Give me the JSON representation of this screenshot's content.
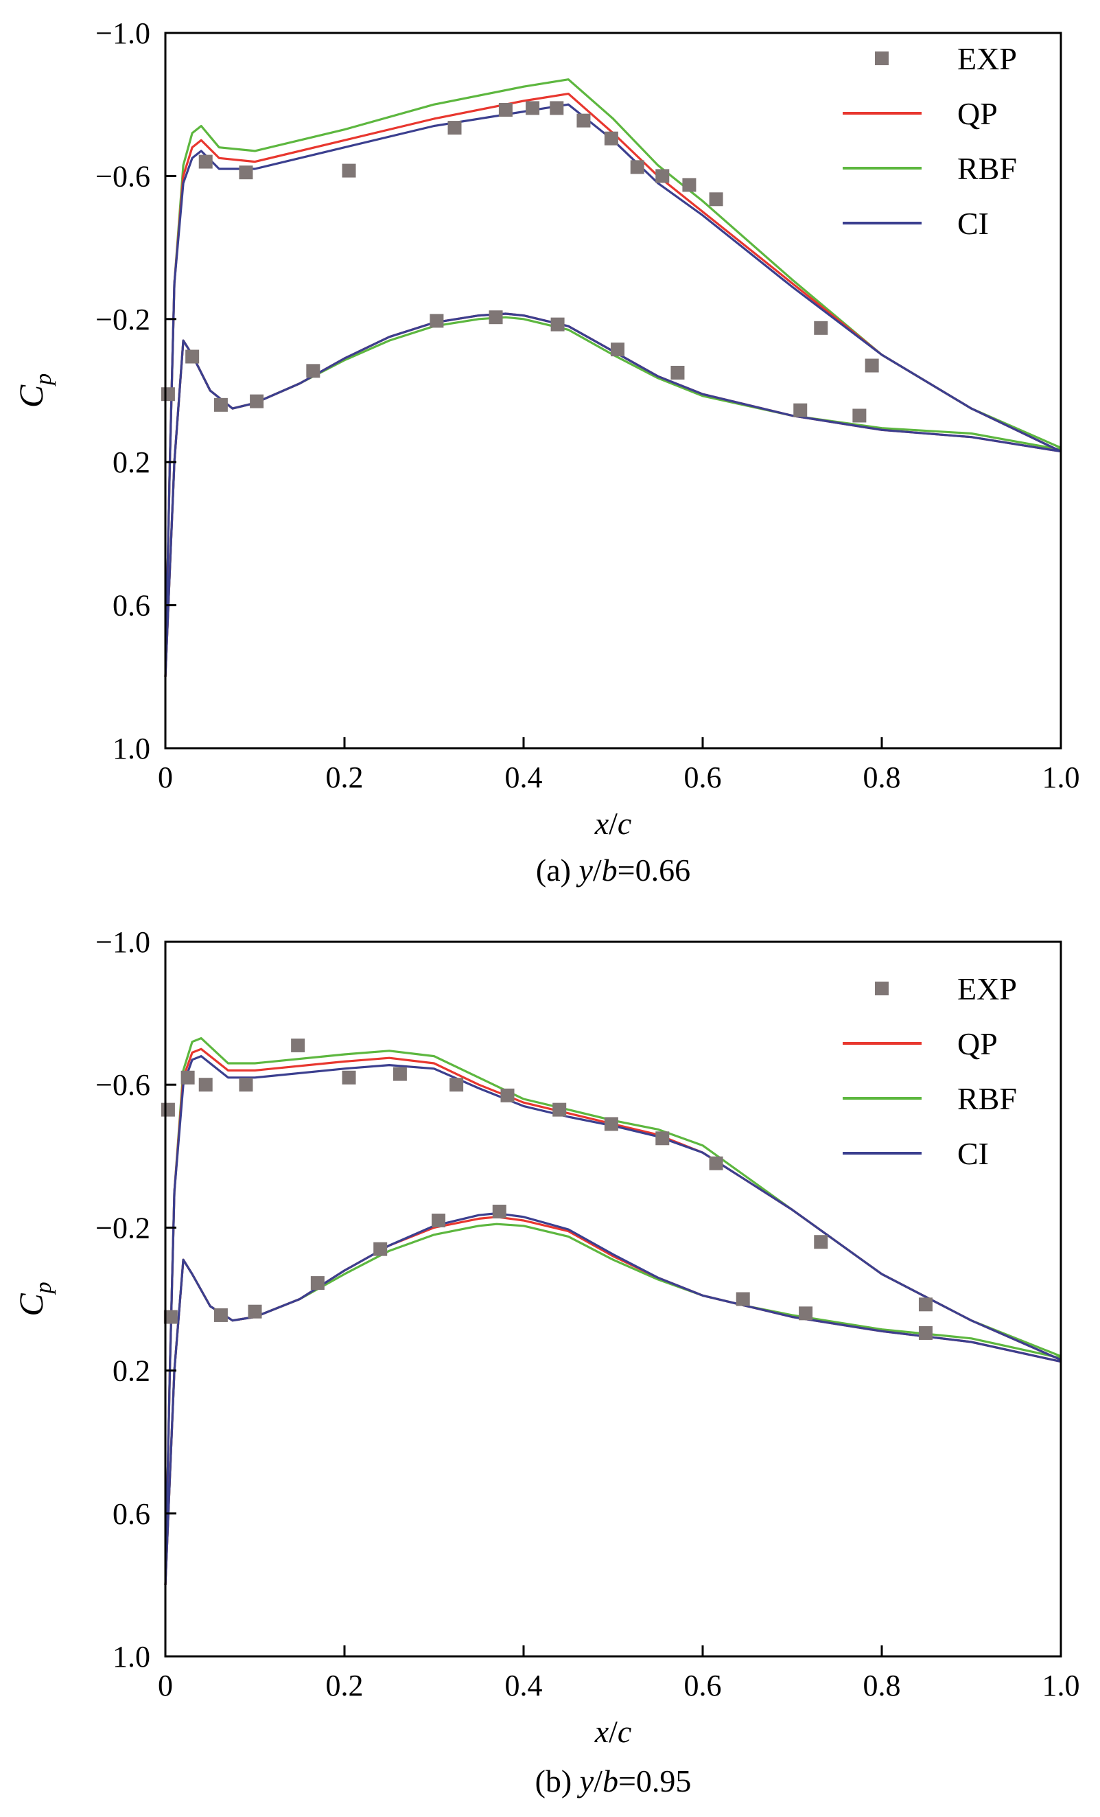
{
  "figure": {
    "colors": {
      "EXP": "#7f7675",
      "QP": "#e8372f",
      "RBF": "#5db73f",
      "CI": "#3b3f8f",
      "axis": "#000000"
    }
  },
  "chart_data": [
    {
      "type": "line",
      "caption": {
        "prefix": "(a) ",
        "var_y": "y",
        "slash": "/",
        "var_b": "b",
        "value": "=0.66"
      },
      "xlabel": {
        "x": "x",
        "slash": "/",
        "c": "c"
      },
      "ylabel": {
        "main": "C",
        "sub": "p"
      },
      "xlim": [
        0,
        1.0
      ],
      "ylim": [
        1.0,
        -1.0
      ],
      "y_inverted": true,
      "xticks": [
        0,
        0.2,
        0.4,
        0.6,
        0.8,
        1.0
      ],
      "xtick_labels": [
        "0",
        "0.2",
        "0.4",
        "0.6",
        "0.8",
        "1.0"
      ],
      "yticks": [
        -1.0,
        -0.6,
        -0.2,
        0.2,
        0.6,
        1.0
      ],
      "ytick_labels": [
        "−1.0",
        "−0.6",
        "−0.2",
        "0.2",
        "0.6",
        "1.0"
      ],
      "legend": {
        "position": "top-right",
        "entries": [
          "EXP",
          "QP",
          "RBF",
          "CI"
        ]
      },
      "series": [
        {
          "name": "EXP",
          "style": "markers",
          "upper_x": [
            0.045,
            0.09,
            0.205,
            0.323,
            0.38,
            0.41,
            0.437,
            0.467,
            0.498,
            0.527,
            0.555,
            0.585,
            0.615,
            0.732,
            0.789
          ],
          "upper_y": [
            -0.64,
            -0.61,
            -0.615,
            -0.735,
            -0.785,
            -0.79,
            -0.79,
            -0.755,
            -0.705,
            -0.625,
            -0.6,
            -0.575,
            -0.535,
            -0.175,
            -0.07
          ],
          "lower_x": [
            0.003,
            0.03,
            0.062,
            0.102,
            0.165,
            0.303,
            0.369,
            0.438,
            0.505,
            0.572,
            0.709,
            0.775
          ],
          "lower_y": [
            0.01,
            -0.095,
            0.04,
            0.03,
            -0.055,
            -0.195,
            -0.205,
            -0.185,
            -0.115,
            -0.05,
            0.055,
            0.07
          ]
        },
        {
          "name": "QP",
          "style": "line",
          "upper_x": [
            0,
            0.005,
            0.01,
            0.02,
            0.03,
            0.04,
            0.06,
            0.1,
            0.2,
            0.3,
            0.4,
            0.45,
            0.5,
            0.55,
            0.6,
            0.7,
            0.8,
            0.9,
            1.0
          ],
          "upper_y": [
            0.8,
            0.2,
            -0.3,
            -0.6,
            -0.68,
            -0.7,
            -0.65,
            -0.64,
            -0.7,
            -0.76,
            -0.81,
            -0.83,
            -0.72,
            -0.6,
            -0.5,
            -0.3,
            -0.1,
            0.05,
            0.17
          ],
          "lower_x": [
            0,
            0.01,
            0.02,
            0.03,
            0.05,
            0.075,
            0.1,
            0.15,
            0.2,
            0.25,
            0.3,
            0.35,
            0.38,
            0.4,
            0.45,
            0.5,
            0.55,
            0.6,
            0.7,
            0.8,
            0.9,
            1.0
          ],
          "lower_y": [
            0.8,
            0.2,
            -0.14,
            -0.1,
            0.0,
            0.05,
            0.035,
            -0.02,
            -0.09,
            -0.15,
            -0.19,
            -0.21,
            -0.215,
            -0.21,
            -0.18,
            -0.11,
            -0.04,
            0.01,
            0.07,
            0.11,
            0.13,
            0.17
          ]
        },
        {
          "name": "RBF",
          "style": "line",
          "upper_x": [
            0,
            0.005,
            0.01,
            0.02,
            0.03,
            0.04,
            0.06,
            0.1,
            0.2,
            0.3,
            0.4,
            0.45,
            0.5,
            0.55,
            0.6,
            0.7,
            0.8,
            0.9,
            1.0
          ],
          "upper_y": [
            0.8,
            0.2,
            -0.3,
            -0.63,
            -0.72,
            -0.74,
            -0.68,
            -0.67,
            -0.73,
            -0.8,
            -0.85,
            -0.87,
            -0.76,
            -0.63,
            -0.53,
            -0.31,
            -0.1,
            0.05,
            0.16
          ],
          "lower_x": [
            0,
            0.01,
            0.02,
            0.03,
            0.05,
            0.075,
            0.1,
            0.15,
            0.2,
            0.25,
            0.3,
            0.35,
            0.38,
            0.4,
            0.45,
            0.5,
            0.55,
            0.6,
            0.7,
            0.8,
            0.9,
            1.0
          ],
          "lower_y": [
            0.8,
            0.2,
            -0.14,
            -0.1,
            0.0,
            0.05,
            0.035,
            -0.02,
            -0.085,
            -0.14,
            -0.18,
            -0.2,
            -0.205,
            -0.2,
            -0.17,
            -0.1,
            -0.035,
            0.015,
            0.07,
            0.105,
            0.12,
            0.165
          ]
        },
        {
          "name": "CI",
          "style": "line",
          "upper_x": [
            0,
            0.005,
            0.01,
            0.02,
            0.03,
            0.04,
            0.06,
            0.1,
            0.2,
            0.3,
            0.4,
            0.45,
            0.5,
            0.55,
            0.6,
            0.7,
            0.8,
            0.9,
            1.0
          ],
          "upper_y": [
            0.8,
            0.2,
            -0.3,
            -0.58,
            -0.65,
            -0.67,
            -0.62,
            -0.62,
            -0.68,
            -0.74,
            -0.78,
            -0.8,
            -0.7,
            -0.58,
            -0.49,
            -0.29,
            -0.1,
            0.05,
            0.17
          ],
          "lower_x": [
            0,
            0.01,
            0.02,
            0.03,
            0.05,
            0.075,
            0.1,
            0.15,
            0.2,
            0.25,
            0.3,
            0.35,
            0.38,
            0.4,
            0.45,
            0.5,
            0.55,
            0.6,
            0.7,
            0.8,
            0.9,
            1.0
          ],
          "lower_y": [
            0.8,
            0.2,
            -0.14,
            -0.1,
            0.0,
            0.05,
            0.035,
            -0.02,
            -0.09,
            -0.15,
            -0.19,
            -0.21,
            -0.215,
            -0.21,
            -0.18,
            -0.11,
            -0.04,
            0.01,
            0.07,
            0.11,
            0.13,
            0.17
          ]
        }
      ]
    },
    {
      "type": "line",
      "caption": {
        "prefix": "(b) ",
        "var_y": "y",
        "slash": "/",
        "var_b": "b",
        "value": "=0.95"
      },
      "xlabel": {
        "x": "x",
        "slash": "/",
        "c": "c"
      },
      "ylabel": {
        "main": "C",
        "sub": "p"
      },
      "xlim": [
        0,
        1.0
      ],
      "ylim": [
        1.0,
        -1.0
      ],
      "y_inverted": true,
      "xticks": [
        0,
        0.2,
        0.4,
        0.6,
        0.8,
        1.0
      ],
      "xtick_labels": [
        "0",
        "0.2",
        "0.4",
        "0.6",
        "0.8",
        "1.0"
      ],
      "yticks": [
        -1.0,
        -0.6,
        -0.2,
        0.2,
        0.6,
        1.0
      ],
      "ytick_labels": [
        "−1.0",
        "−0.6",
        "−0.2",
        "0.2",
        "0.6",
        "1.0"
      ],
      "legend": {
        "position": "top-right",
        "entries": [
          "EXP",
          "QP",
          "RBF",
          "CI"
        ]
      },
      "series": [
        {
          "name": "EXP",
          "style": "markers",
          "upper_x": [
            0.003,
            0.025,
            0.045,
            0.09,
            0.148,
            0.205,
            0.262,
            0.325,
            0.382,
            0.44,
            0.498,
            0.555,
            0.615,
            0.732,
            0.849
          ],
          "upper_y": [
            -0.53,
            -0.62,
            -0.6,
            -0.6,
            -0.71,
            -0.62,
            -0.63,
            -0.6,
            -0.57,
            -0.53,
            -0.49,
            -0.45,
            -0.38,
            -0.16,
            0.015
          ],
          "lower_x": [
            0.006,
            0.062,
            0.1,
            0.17,
            0.24,
            0.305,
            0.373,
            0.645,
            0.715,
            0.849
          ],
          "lower_y": [
            0.05,
            0.045,
            0.035,
            -0.045,
            -0.14,
            -0.22,
            -0.245,
            0.0,
            0.04,
            0.095
          ]
        },
        {
          "name": "QP",
          "style": "line",
          "upper_x": [
            0,
            0.005,
            0.01,
            0.02,
            0.03,
            0.04,
            0.07,
            0.1,
            0.2,
            0.25,
            0.3,
            0.35,
            0.4,
            0.45,
            0.5,
            0.55,
            0.6,
            0.65,
            0.7,
            0.8,
            0.9,
            1.0
          ],
          "upper_y": [
            0.8,
            0.2,
            -0.3,
            -0.62,
            -0.69,
            -0.7,
            -0.64,
            -0.64,
            -0.665,
            -0.675,
            -0.66,
            -0.6,
            -0.55,
            -0.52,
            -0.49,
            -0.46,
            -0.41,
            -0.33,
            -0.25,
            -0.07,
            0.06,
            0.17
          ],
          "lower_x": [
            0,
            0.01,
            0.02,
            0.03,
            0.05,
            0.075,
            0.1,
            0.15,
            0.2,
            0.25,
            0.3,
            0.35,
            0.37,
            0.4,
            0.45,
            0.5,
            0.55,
            0.6,
            0.65,
            0.7,
            0.8,
            0.9,
            1.0
          ],
          "lower_y": [
            0.8,
            0.2,
            -0.11,
            -0.07,
            0.02,
            0.06,
            0.05,
            0.0,
            -0.08,
            -0.15,
            -0.2,
            -0.225,
            -0.23,
            -0.22,
            -0.19,
            -0.12,
            -0.06,
            -0.01,
            0.02,
            0.05,
            0.09,
            0.12,
            0.175
          ]
        },
        {
          "name": "RBF",
          "style": "line",
          "upper_x": [
            0,
            0.005,
            0.01,
            0.02,
            0.03,
            0.04,
            0.07,
            0.1,
            0.2,
            0.25,
            0.3,
            0.35,
            0.4,
            0.45,
            0.5,
            0.55,
            0.6,
            0.65,
            0.7,
            0.8,
            0.9,
            1.0
          ],
          "upper_y": [
            0.8,
            0.2,
            -0.3,
            -0.64,
            -0.72,
            -0.73,
            -0.66,
            -0.66,
            -0.685,
            -0.695,
            -0.68,
            -0.62,
            -0.56,
            -0.53,
            -0.5,
            -0.475,
            -0.43,
            -0.34,
            -0.25,
            -0.07,
            0.06,
            0.16
          ],
          "lower_x": [
            0,
            0.01,
            0.02,
            0.03,
            0.05,
            0.075,
            0.1,
            0.15,
            0.2,
            0.25,
            0.3,
            0.35,
            0.37,
            0.4,
            0.45,
            0.5,
            0.55,
            0.6,
            0.65,
            0.7,
            0.8,
            0.9,
            1.0
          ],
          "lower_y": [
            0.8,
            0.2,
            -0.11,
            -0.07,
            0.02,
            0.06,
            0.05,
            0.0,
            -0.07,
            -0.135,
            -0.18,
            -0.205,
            -0.21,
            -0.205,
            -0.175,
            -0.11,
            -0.055,
            -0.01,
            0.02,
            0.045,
            0.085,
            0.11,
            0.165
          ]
        },
        {
          "name": "CI",
          "style": "line",
          "upper_x": [
            0,
            0.005,
            0.01,
            0.02,
            0.03,
            0.04,
            0.07,
            0.1,
            0.2,
            0.25,
            0.3,
            0.35,
            0.4,
            0.45,
            0.5,
            0.55,
            0.6,
            0.65,
            0.7,
            0.8,
            0.9,
            1.0
          ],
          "upper_y": [
            0.8,
            0.2,
            -0.3,
            -0.6,
            -0.67,
            -0.68,
            -0.62,
            -0.62,
            -0.645,
            -0.655,
            -0.645,
            -0.59,
            -0.54,
            -0.51,
            -0.485,
            -0.455,
            -0.41,
            -0.33,
            -0.25,
            -0.07,
            0.06,
            0.17
          ],
          "lower_x": [
            0,
            0.01,
            0.02,
            0.03,
            0.05,
            0.075,
            0.1,
            0.15,
            0.2,
            0.25,
            0.3,
            0.35,
            0.37,
            0.4,
            0.45,
            0.5,
            0.55,
            0.6,
            0.65,
            0.7,
            0.8,
            0.9,
            1.0
          ],
          "lower_y": [
            0.8,
            0.2,
            -0.11,
            -0.07,
            0.02,
            0.06,
            0.05,
            0.0,
            -0.08,
            -0.15,
            -0.205,
            -0.235,
            -0.24,
            -0.23,
            -0.195,
            -0.125,
            -0.06,
            -0.01,
            0.02,
            0.05,
            0.09,
            0.12,
            0.175
          ]
        }
      ]
    }
  ]
}
